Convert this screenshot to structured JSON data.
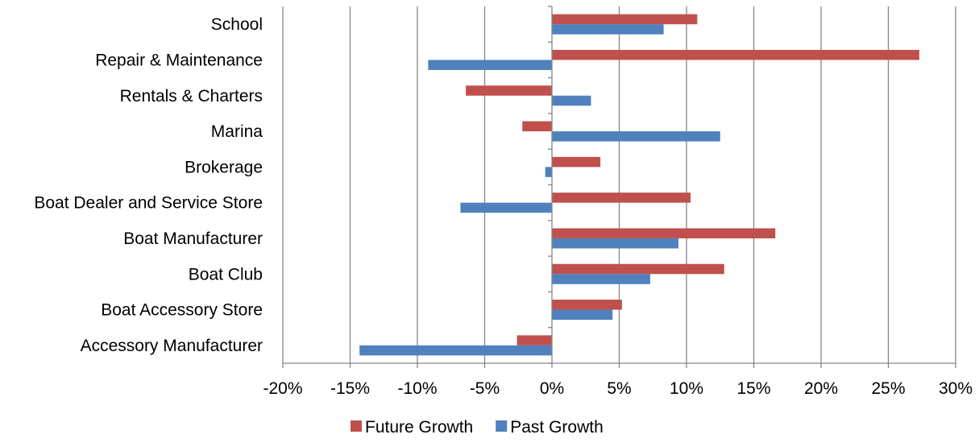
{
  "chart_data": {
    "type": "bar",
    "orientation": "horizontal",
    "title": "",
    "xlabel": "",
    "ylabel": "",
    "categories": [
      "School",
      "Repair & Maintenance",
      "Rentals & Charters",
      "Marina",
      "Brokerage",
      "Boat Dealer and Service Store",
      "Boat Manufacturer",
      "Boat Club",
      "Boat Accessory Store",
      "Accessory Manufacturer"
    ],
    "series": [
      {
        "name": "Future Growth",
        "color": "#C0504D",
        "values": [
          0.108,
          0.273,
          -0.064,
          -0.022,
          0.036,
          0.103,
          0.166,
          0.128,
          0.052,
          -0.026
        ]
      },
      {
        "name": "Past Growth",
        "color": "#4F81BD",
        "values": [
          0.083,
          -0.092,
          0.029,
          0.125,
          -0.005,
          -0.068,
          0.094,
          0.073,
          0.045,
          -0.143
        ]
      }
    ],
    "xlim": [
      -0.2,
      0.3
    ],
    "xticks": [
      -0.2,
      -0.15,
      -0.1,
      -0.05,
      0,
      0.05,
      0.1,
      0.15,
      0.2,
      0.25,
      0.3
    ],
    "xtick_labels": [
      "-20%",
      "-15%",
      "-10%",
      "-5%",
      "0%",
      "5%",
      "10%",
      "15%",
      "20%",
      "25%",
      "30%"
    ],
    "grid": "vertical",
    "legend_position": "bottom"
  }
}
